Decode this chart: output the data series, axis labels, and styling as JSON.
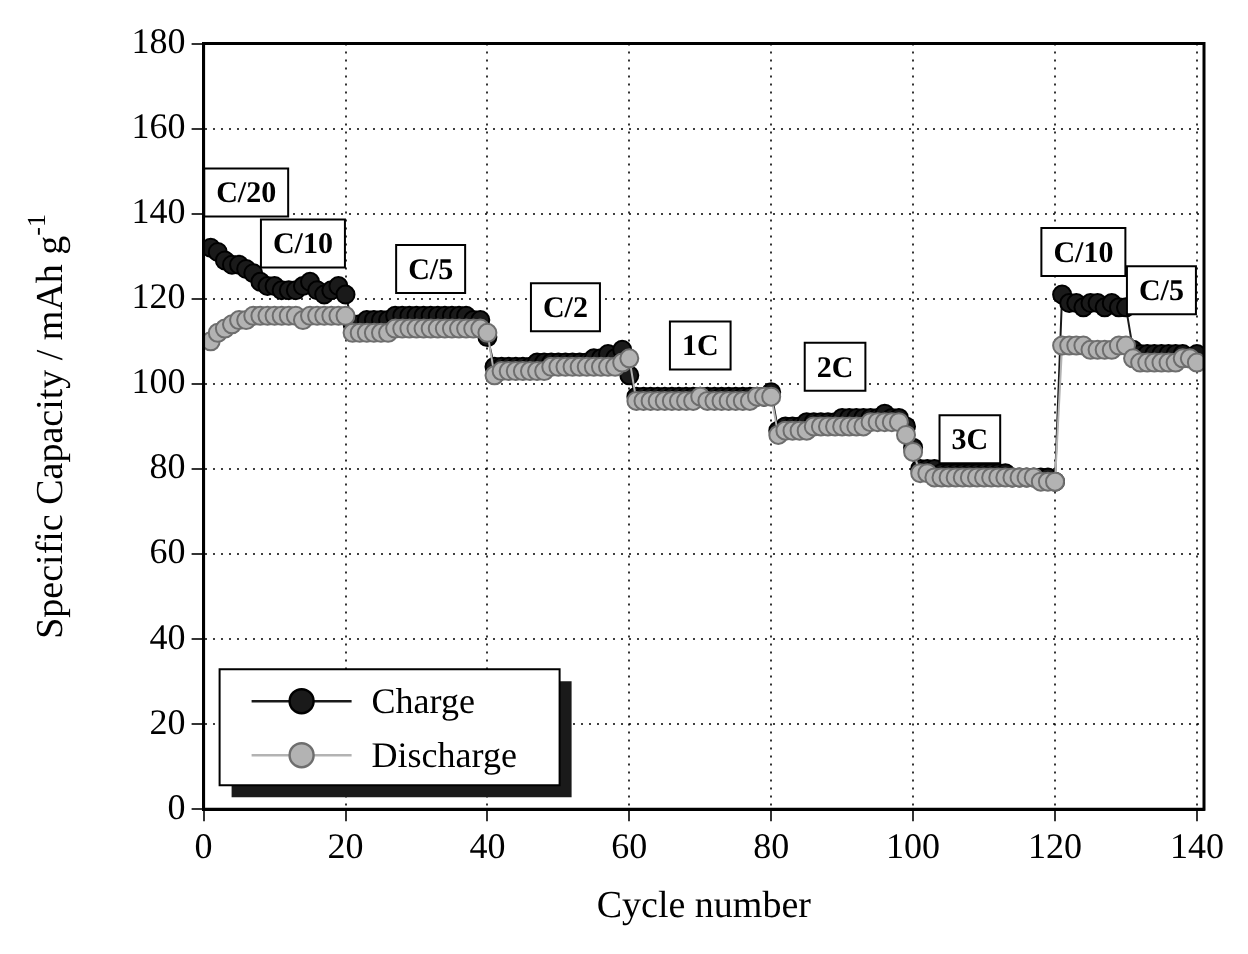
{
  "chart_data": {
    "type": "line",
    "xlabel": "Cycle number",
    "ylabel": "Specific Capacity / mAh g$^{-1}$",
    "x": [
      1,
      2,
      3,
      4,
      5,
      6,
      7,
      8,
      9,
      10,
      11,
      12,
      13,
      14,
      15,
      16,
      17,
      18,
      19,
      20,
      21,
      22,
      23,
      24,
      25,
      26,
      27,
      28,
      29,
      30,
      31,
      32,
      33,
      34,
      35,
      36,
      37,
      38,
      39,
      40,
      41,
      42,
      43,
      44,
      45,
      46,
      47,
      48,
      49,
      50,
      51,
      52,
      53,
      54,
      55,
      56,
      57,
      58,
      59,
      60,
      61,
      62,
      63,
      64,
      65,
      66,
      67,
      68,
      69,
      70,
      71,
      72,
      73,
      74,
      75,
      76,
      77,
      78,
      79,
      80,
      81,
      82,
      83,
      84,
      85,
      86,
      87,
      88,
      89,
      90,
      91,
      92,
      93,
      94,
      95,
      96,
      97,
      98,
      99,
      100,
      101,
      102,
      103,
      104,
      105,
      106,
      107,
      108,
      109,
      110,
      111,
      112,
      113,
      114,
      115,
      116,
      117,
      118,
      119,
      120,
      121,
      122,
      123,
      124,
      125,
      126,
      127,
      128,
      129,
      130,
      131,
      132,
      133,
      134,
      135,
      136,
      137,
      138,
      139,
      140
    ],
    "series": [
      {
        "name": "Charge",
        "color": "#1a1a1a",
        "values": [
          132,
          131,
          129,
          128,
          128,
          127,
          126,
          124,
          123,
          123,
          122,
          122,
          122,
          123,
          124,
          122,
          121,
          122,
          123,
          121,
          114,
          114,
          115,
          115,
          115,
          115,
          116,
          116,
          116,
          116,
          116,
          116,
          116,
          116,
          116,
          116,
          116,
          115,
          115,
          111,
          104,
          104,
          104,
          104,
          104,
          104,
          105,
          105,
          105,
          105,
          105,
          105,
          105,
          105,
          106,
          106,
          107,
          106,
          108,
          102,
          97,
          97,
          97,
          97,
          97,
          97,
          97,
          97,
          97,
          97,
          97,
          97,
          97,
          97,
          97,
          97,
          97,
          97,
          97,
          98,
          89,
          90,
          90,
          90,
          91,
          91,
          91,
          91,
          91,
          92,
          92,
          92,
          92,
          92,
          92,
          93,
          92,
          92,
          90,
          85,
          80,
          80,
          80,
          79,
          79,
          79,
          79,
          79,
          79,
          79,
          79,
          79,
          79,
          78,
          78,
          78,
          78,
          78,
          78,
          77,
          121,
          119,
          119,
          118,
          119,
          119,
          118,
          119,
          118,
          118,
          108,
          107,
          107,
          107,
          107,
          107,
          107,
          107,
          106,
          107
        ]
      },
      {
        "name": "Discharge",
        "color": "#b3b3b3",
        "values": [
          110,
          112,
          113,
          114,
          115,
          115,
          116,
          116,
          116,
          116,
          116,
          116,
          116,
          115,
          116,
          116,
          116,
          116,
          116,
          116,
          112,
          112,
          112,
          112,
          112,
          112,
          113,
          113,
          113,
          113,
          113,
          113,
          113,
          113,
          113,
          113,
          113,
          113,
          113,
          112,
          102,
          103,
          103,
          103,
          103,
          103,
          103,
          103,
          104,
          104,
          104,
          104,
          104,
          104,
          104,
          104,
          104,
          104,
          105,
          106,
          96,
          96,
          96,
          96,
          96,
          96,
          96,
          96,
          96,
          97,
          96,
          96,
          96,
          96,
          96,
          96,
          96,
          97,
          97,
          97,
          88,
          89,
          89,
          89,
          89,
          90,
          90,
          90,
          90,
          90,
          90,
          90,
          90,
          91,
          91,
          91,
          91,
          91,
          88,
          84,
          79,
          79,
          78,
          78,
          78,
          78,
          78,
          78,
          78,
          78,
          78,
          78,
          78,
          78,
          78,
          78,
          78,
          77,
          77,
          77,
          109,
          109,
          109,
          109,
          108,
          108,
          108,
          108,
          109,
          109,
          106,
          105,
          105,
          105,
          105,
          105,
          105,
          106,
          106,
          105
        ]
      }
    ],
    "xlim": [
      0,
      141
    ],
    "xticks": [
      0,
      20,
      40,
      60,
      80,
      100,
      120,
      140
    ],
    "ylim": [
      0,
      180
    ],
    "yticks": [
      0,
      20,
      40,
      60,
      80,
      100,
      120,
      140,
      160,
      180
    ],
    "grid": true,
    "legend": "bottom left",
    "marker": "circle",
    "line_style": "solid",
    "annotations": [
      {
        "text": "C/20",
        "x": 6,
        "y": 145
      },
      {
        "text": "C/10",
        "x": 14,
        "y": 133
      },
      {
        "text": "C/5",
        "x": 32,
        "y": 127
      },
      {
        "text": "C/2",
        "x": 51,
        "y": 118
      },
      {
        "text": "1C",
        "x": 70,
        "y": 109
      },
      {
        "text": "2C",
        "x": 89,
        "y": 104
      },
      {
        "text": "3C",
        "x": 108,
        "y": 87
      },
      {
        "text": "C/10",
        "x": 124,
        "y": 131
      },
      {
        "text": "C/5",
        "x": 135,
        "y": 122
      }
    ]
  }
}
